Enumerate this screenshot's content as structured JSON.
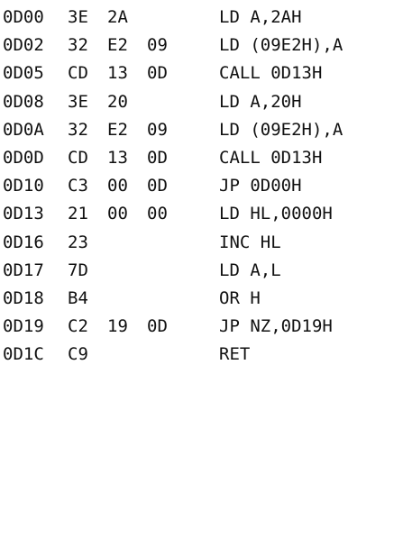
{
  "listing": {
    "rows": [
      {
        "address": "0D00",
        "bytes": [
          "3E",
          "2A",
          ""
        ],
        "instruction": "LD A,2AH"
      },
      {
        "address": "0D02",
        "bytes": [
          "32",
          "E2",
          "09"
        ],
        "instruction": "LD (09E2H),A"
      },
      {
        "address": "0D05",
        "bytes": [
          "CD",
          "13",
          "0D"
        ],
        "instruction": "CALL 0D13H"
      },
      {
        "address": "0D08",
        "bytes": [
          "3E",
          "20",
          ""
        ],
        "instruction": "LD A,20H"
      },
      {
        "address": "0D0A",
        "bytes": [
          "32",
          "E2",
          "09"
        ],
        "instruction": "LD (09E2H),A"
      },
      {
        "address": "0D0D",
        "bytes": [
          "CD",
          "13",
          "0D"
        ],
        "instruction": "CALL 0D13H"
      },
      {
        "address": "0D10",
        "bytes": [
          "C3",
          "00",
          "0D"
        ],
        "instruction": "JP 0D00H"
      },
      {
        "address": "0D13",
        "bytes": [
          "21",
          "00",
          "00"
        ],
        "instruction": "LD HL,0000H"
      },
      {
        "address": "0D16",
        "bytes": [
          "23",
          "",
          ""
        ],
        "instruction": "INC HL"
      },
      {
        "address": "0D17",
        "bytes": [
          "7D",
          "",
          ""
        ],
        "instruction": "LD A,L"
      },
      {
        "address": "0D18",
        "bytes": [
          "B4",
          "",
          ""
        ],
        "instruction": "OR H"
      },
      {
        "address": "0D19",
        "bytes": [
          "C2",
          "19",
          "0D"
        ],
        "instruction": "JP NZ,0D19H"
      },
      {
        "address": "0D1C",
        "bytes": [
          "C9",
          "",
          ""
        ],
        "instruction": "RET"
      }
    ]
  }
}
